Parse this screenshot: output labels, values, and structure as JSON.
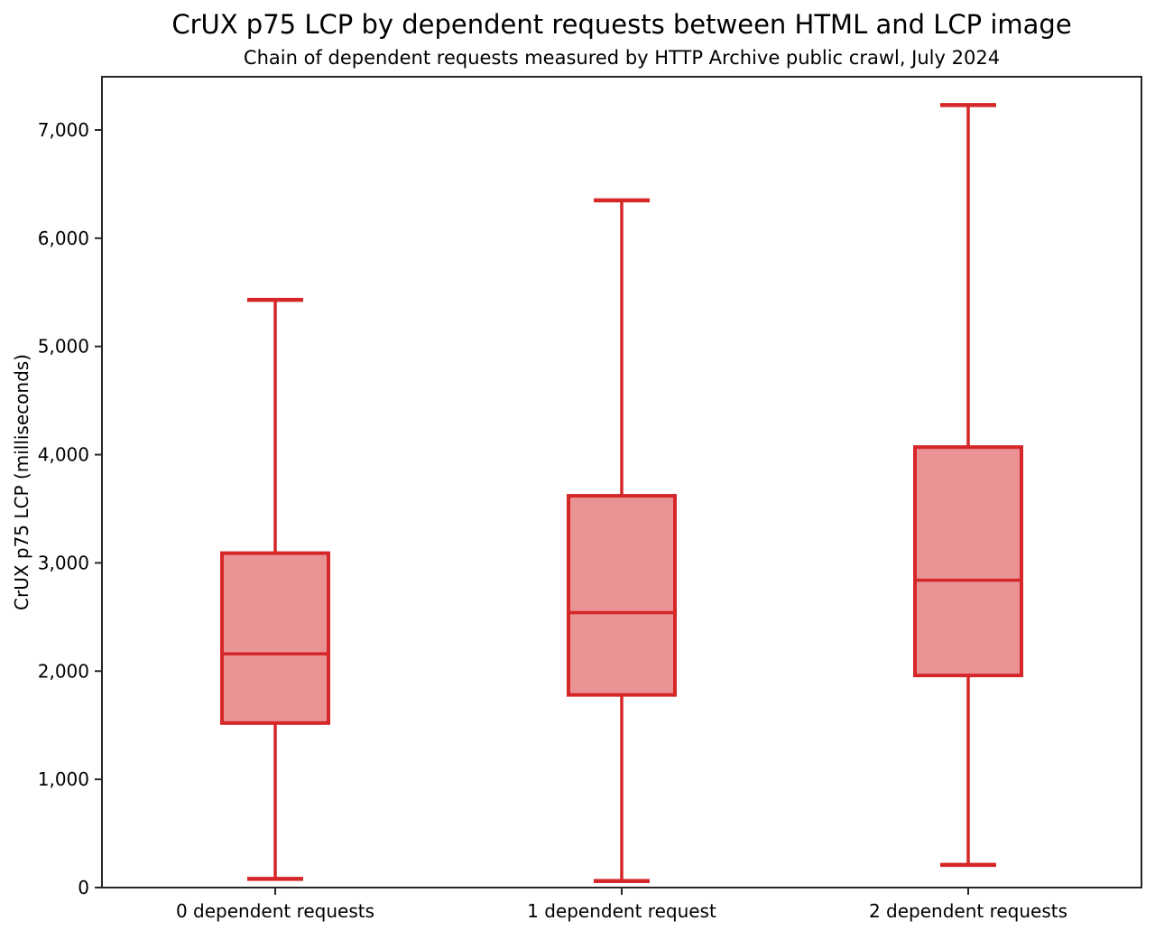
{
  "chart": {
    "title": "CrUX p75 LCP by dependent requests between HTML and LCP image",
    "subtitle": "Chain of dependent requests measured by HTTP Archive public crawl, July 2024",
    "ylabel": "CrUX p75 LCP (milliseconds)"
  },
  "chart_data": {
    "type": "boxplot",
    "title": "CrUX p75 LCP by dependent requests between HTML and LCP image",
    "subtitle": "Chain of dependent requests measured by HTTP Archive public crawl, July 2024",
    "xlabel": "",
    "ylabel": "CrUX p75 LCP (milliseconds)",
    "categories": [
      "0 dependent requests",
      "1 dependent request",
      "2 dependent requests"
    ],
    "series": [
      {
        "name": "0 dependent requests",
        "min": 80,
        "q1": 1520,
        "median": 2160,
        "q3": 3090,
        "max": 5430
      },
      {
        "name": "1 dependent request",
        "min": 60,
        "q1": 1780,
        "median": 2540,
        "q3": 3620,
        "max": 6350
      },
      {
        "name": "2 dependent requests",
        "min": 210,
        "q1": 1960,
        "median": 2840,
        "q3": 4070,
        "max": 7230
      }
    ],
    "yticks": [
      0,
      1000,
      2000,
      3000,
      4000,
      5000,
      6000,
      7000
    ],
    "ytick_labels": [
      "0",
      "1,000",
      "2,000",
      "3,000",
      "4,000",
      "5,000",
      "6,000",
      "7,000"
    ],
    "ylim": [
      0,
      7492
    ],
    "grid": false,
    "legend": null,
    "colors": {
      "box_edge": "#d62728",
      "box_fill": "#ea9394",
      "median": "#d62728",
      "whisker": "#d62728",
      "cap": "#d62728",
      "axis": "#262626",
      "text": "#000000",
      "background": "#ffffff"
    }
  }
}
